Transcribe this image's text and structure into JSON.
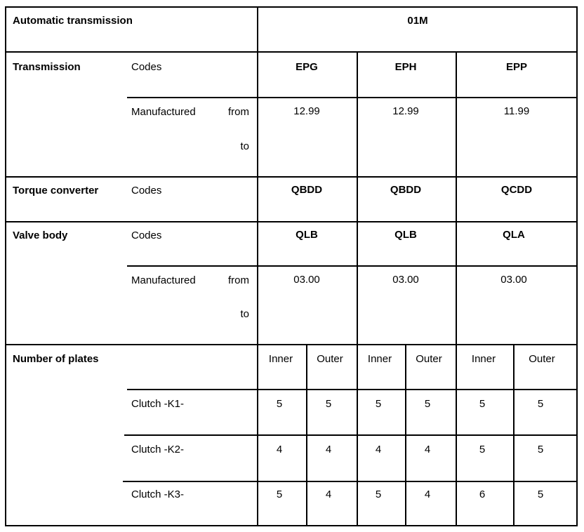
{
  "header": {
    "label": "Automatic transmission",
    "value": "01M"
  },
  "transmission": {
    "label": "Transmission",
    "codes_label": "Codes",
    "codes": [
      "EPG",
      "EPH",
      "EPP"
    ],
    "manufactured_label": "Manufactured",
    "from_label": "from",
    "to_label": "to",
    "from": [
      "12.99",
      "12.99",
      "11.99"
    ]
  },
  "torque_converter": {
    "label": "Torque converter",
    "codes_label": "Codes",
    "codes": [
      "QBDD",
      "QBDD",
      "QCDD"
    ]
  },
  "valve_body": {
    "label": "Valve body",
    "codes_label": "Codes",
    "codes": [
      "QLB",
      "QLB",
      "QLA"
    ],
    "manufactured_label": "Manufactured",
    "from_label": "from",
    "to_label": "to",
    "from": [
      "03.00",
      "03.00",
      "03.00"
    ]
  },
  "plates": {
    "label": "Number of plates",
    "columns": [
      "Inner",
      "Outer",
      "Inner",
      "Outer",
      "Inner",
      "Outer"
    ],
    "rows": [
      {
        "label": "Clutch -K1-",
        "values": [
          "5",
          "5",
          "5",
          "5",
          "5",
          "5"
        ]
      },
      {
        "label": "Clutch -K2-",
        "values": [
          "4",
          "4",
          "4",
          "4",
          "5",
          "5"
        ]
      },
      {
        "label": "Clutch -K3-",
        "values": [
          "5",
          "4",
          "5",
          "4",
          "6",
          "5"
        ]
      }
    ]
  }
}
